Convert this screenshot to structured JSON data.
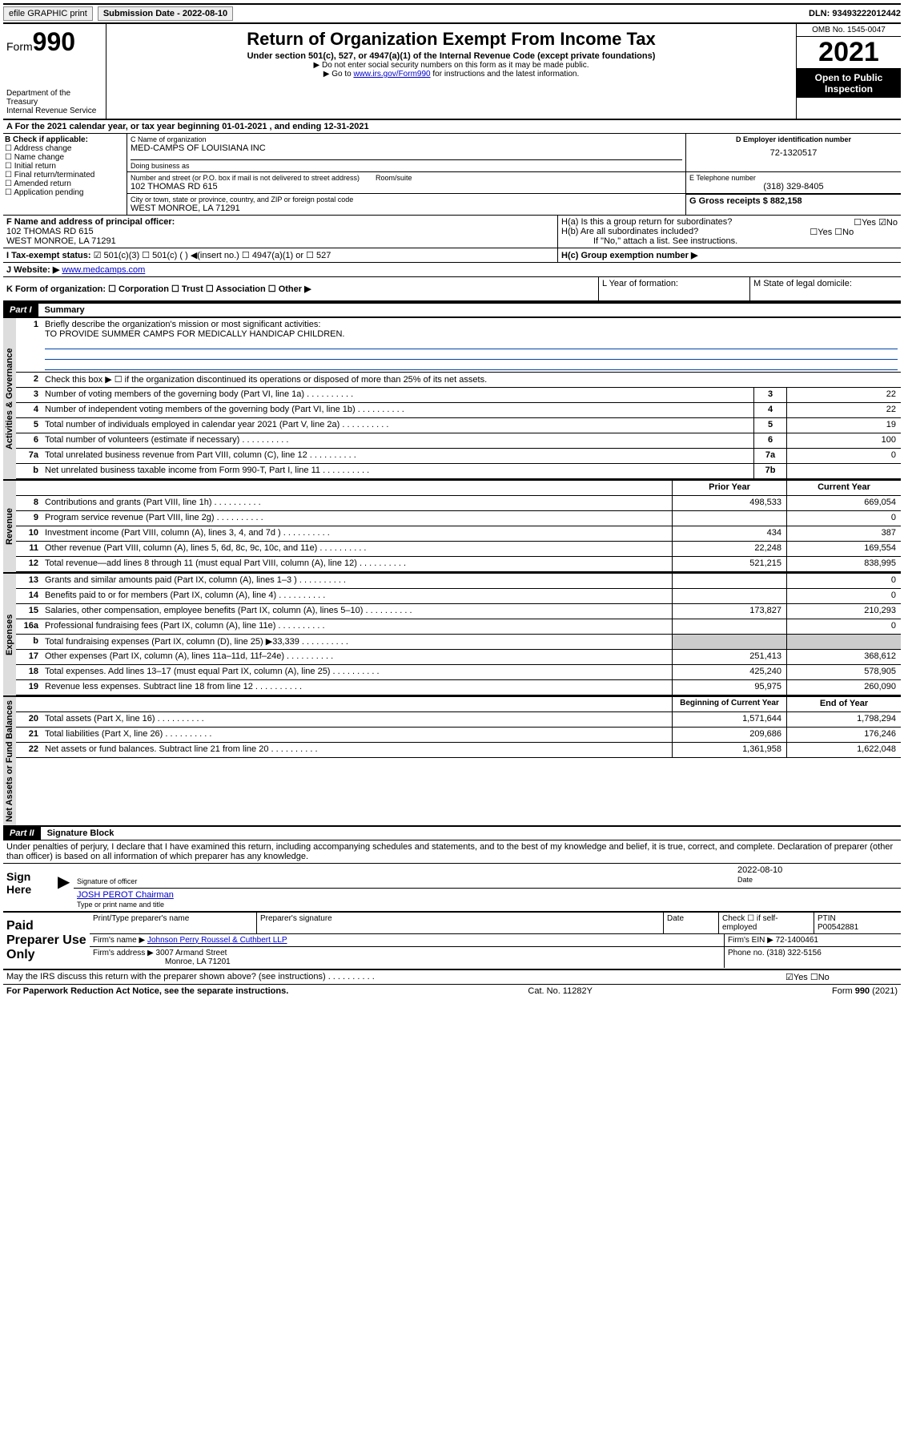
{
  "top": {
    "efile": "efile GRAPHIC print",
    "submission_label": "Submission Date - 2022-08-10",
    "dln": "DLN: 93493222012442"
  },
  "header": {
    "form_label": "Form",
    "form_num": "990",
    "title": "Return of Organization Exempt From Income Tax",
    "sub": "Under section 501(c), 527, or 4947(a)(1) of the Internal Revenue Code (except private foundations)",
    "note1": "▶ Do not enter social security numbers on this form as it may be made public.",
    "note2_pre": "▶ Go to ",
    "note2_link": "www.irs.gov/Form990",
    "note2_post": " for instructions and the latest information.",
    "dept": "Department of the Treasury\nInternal Revenue Service",
    "omb": "OMB No. 1545-0047",
    "year": "2021",
    "inspect": "Open to Public Inspection"
  },
  "A": {
    "text": "A For the 2021 calendar year, or tax year beginning 01-01-2021    , and ending 12-31-2021"
  },
  "B": {
    "label": "B Check if applicable:",
    "items": [
      "Address change",
      "Name change",
      "Initial return",
      "Final return/terminated",
      "Amended return",
      "Application pending"
    ]
  },
  "C": {
    "name_label": "C Name of organization",
    "name": "MED-CAMPS OF LOUISIANA INC",
    "dba_label": "Doing business as",
    "street_label": "Number and street (or P.O. box if mail is not delivered to street address)",
    "room_label": "Room/suite",
    "street": "102 THOMAS RD 615",
    "city_label": "City or town, state or province, country, and ZIP or foreign postal code",
    "city": "WEST MONROE, LA  71291"
  },
  "D": {
    "label": "D Employer identification number",
    "value": "72-1320517"
  },
  "E": {
    "label": "E Telephone number",
    "value": "(318) 329-8405"
  },
  "G": {
    "label": "G Gross receipts $ 882,158"
  },
  "F": {
    "label": "F Name and address of principal officer:",
    "line1": "102 THOMAS RD 615",
    "line2": "WEST MONROE, LA  71291"
  },
  "H": {
    "a": "H(a)  Is this a group return for subordinates?",
    "a_ans": "☐Yes ☑No",
    "b": "H(b)  Are all subordinates included?",
    "b_ans": "☐Yes ☐No",
    "b_note": "If \"No,\" attach a list. See instructions.",
    "c": "H(c)  Group exemption number ▶"
  },
  "I": {
    "label": "I    Tax-exempt status:",
    "opts": "☑ 501(c)(3)   ☐ 501(c) (  ) ◀(insert no.)    ☐ 4947(a)(1) or  ☐ 527"
  },
  "J": {
    "label": "J   Website: ▶",
    "value": "www.medcamps.com"
  },
  "K": {
    "label": "K Form of organization:  ☐ Corporation  ☐ Trust  ☐ Association  ☐ Other ▶"
  },
  "L": {
    "label": "L Year of formation:"
  },
  "M": {
    "label": "M State of legal domicile:"
  },
  "part1": {
    "hdr": "Part I",
    "title": "Summary",
    "q1": "Briefly describe the organization's mission or most significant activities:",
    "q1a": "TO PROVIDE SUMMER CAMPS FOR MEDICALLY HANDICAP CHILDREN.",
    "q2": "Check this box ▶ ☐  if the organization discontinued its operations or disposed of more than 25% of its net assets.",
    "sections": {
      "gov": "Activities & Governance",
      "rev": "Revenue",
      "exp": "Expenses",
      "net": "Net Assets or Fund Balances"
    },
    "rows_gov": [
      {
        "n": "3",
        "d": "Number of voting members of the governing body (Part VI, line 1a)",
        "nc": "3",
        "v": "22"
      },
      {
        "n": "4",
        "d": "Number of independent voting members of the governing body (Part VI, line 1b)",
        "nc": "4",
        "v": "22"
      },
      {
        "n": "5",
        "d": "Total number of individuals employed in calendar year 2021 (Part V, line 2a)",
        "nc": "5",
        "v": "19"
      },
      {
        "n": "6",
        "d": "Total number of volunteers (estimate if necessary)",
        "nc": "6",
        "v": "100"
      },
      {
        "n": "7a",
        "d": "Total unrelated business revenue from Part VIII, column (C), line 12",
        "nc": "7a",
        "v": "0"
      },
      {
        "n": "b",
        "d": "Net unrelated business taxable income from Form 990-T, Part I, line 11",
        "nc": "7b",
        "v": ""
      }
    ],
    "col_hdr_prior": "Prior Year",
    "col_hdr_curr": "Current Year",
    "rows_rev": [
      {
        "n": "8",
        "d": "Contributions and grants (Part VIII, line 1h)",
        "p": "498,533",
        "c": "669,054"
      },
      {
        "n": "9",
        "d": "Program service revenue (Part VIII, line 2g)",
        "p": "",
        "c": "0"
      },
      {
        "n": "10",
        "d": "Investment income (Part VIII, column (A), lines 3, 4, and 7d )",
        "p": "434",
        "c": "387"
      },
      {
        "n": "11",
        "d": "Other revenue (Part VIII, column (A), lines 5, 6d, 8c, 9c, 10c, and 11e)",
        "p": "22,248",
        "c": "169,554"
      },
      {
        "n": "12",
        "d": "Total revenue—add lines 8 through 11 (must equal Part VIII, column (A), line 12)",
        "p": "521,215",
        "c": "838,995"
      }
    ],
    "rows_exp": [
      {
        "n": "13",
        "d": "Grants and similar amounts paid (Part IX, column (A), lines 1–3 )",
        "p": "",
        "c": "0"
      },
      {
        "n": "14",
        "d": "Benefits paid to or for members (Part IX, column (A), line 4)",
        "p": "",
        "c": "0"
      },
      {
        "n": "15",
        "d": "Salaries, other compensation, employee benefits (Part IX, column (A), lines 5–10)",
        "p": "173,827",
        "c": "210,293"
      },
      {
        "n": "16a",
        "d": "Professional fundraising fees (Part IX, column (A), line 11e)",
        "p": "",
        "c": "0"
      },
      {
        "n": "b",
        "d": "Total fundraising expenses (Part IX, column (D), line 25) ▶33,339",
        "p": "SHADE",
        "c": "SHADE"
      },
      {
        "n": "17",
        "d": "Other expenses (Part IX, column (A), lines 11a–11d, 11f–24e)",
        "p": "251,413",
        "c": "368,612"
      },
      {
        "n": "18",
        "d": "Total expenses. Add lines 13–17 (must equal Part IX, column (A), line 25)",
        "p": "425,240",
        "c": "578,905"
      },
      {
        "n": "19",
        "d": "Revenue less expenses. Subtract line 18 from line 12",
        "p": "95,975",
        "c": "260,090"
      }
    ],
    "col_hdr_boy": "Beginning of Current Year",
    "col_hdr_eoy": "End of Year",
    "rows_net": [
      {
        "n": "20",
        "d": "Total assets (Part X, line 16)",
        "p": "1,571,644",
        "c": "1,798,294"
      },
      {
        "n": "21",
        "d": "Total liabilities (Part X, line 26)",
        "p": "209,686",
        "c": "176,246"
      },
      {
        "n": "22",
        "d": "Net assets or fund balances. Subtract line 21 from line 20",
        "p": "1,361,958",
        "c": "1,622,048"
      }
    ]
  },
  "part2": {
    "hdr": "Part II",
    "title": "Signature Block",
    "decl": "Under penalties of perjury, I declare that I have examined this return, including accompanying schedules and statements, and to the best of my knowledge and belief, it is true, correct, and complete. Declaration of preparer (other than officer) is based on all information of which preparer has any knowledge.",
    "sign_here": "Sign Here",
    "sig_officer": "Signature of officer",
    "sig_date_label": "Date",
    "sig_date": "2022-08-10",
    "officer_name": "JOSH PEROT Chairman",
    "officer_sub": "Type or print name and title",
    "paid": "Paid Preparer Use Only",
    "p_name_label": "Print/Type preparer's name",
    "p_sig_label": "Preparer's signature",
    "p_date_label": "Date",
    "p_check": "Check ☐ if self-employed",
    "p_ptin_label": "PTIN",
    "p_ptin": "P00542881",
    "firm_name_label": "Firm's name    ▶",
    "firm_name": "Johnson Perry Roussel & Cuthbert LLP",
    "firm_ein_label": "Firm's EIN ▶",
    "firm_ein": "72-1400461",
    "firm_addr_label": "Firm's address ▶",
    "firm_addr1": "3007 Armand Street",
    "firm_addr2": "Monroe, LA  71201",
    "phone_label": "Phone no.",
    "phone": "(318) 322-5156",
    "discuss": "May the IRS discuss this return with the preparer shown above? (see instructions)",
    "discuss_ans": "☑Yes  ☐No"
  },
  "footer": {
    "left": "For Paperwork Reduction Act Notice, see the separate instructions.",
    "mid": "Cat. No. 11282Y",
    "right": "Form 990 (2021)"
  }
}
